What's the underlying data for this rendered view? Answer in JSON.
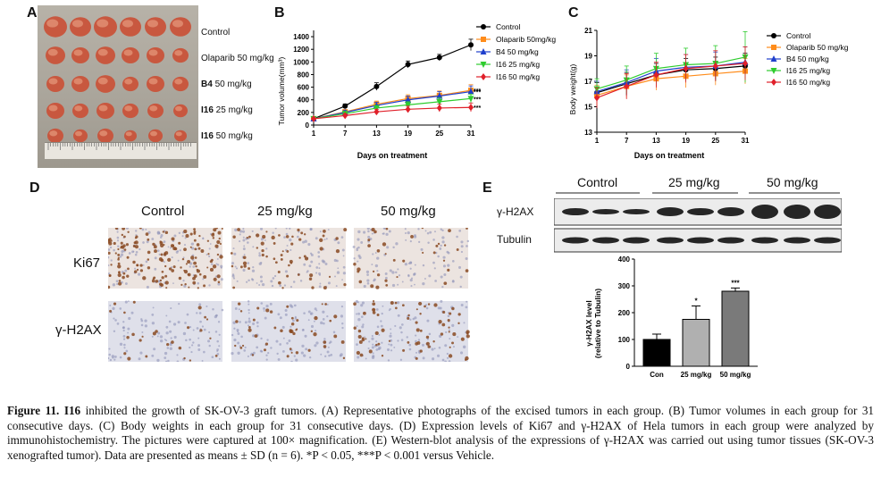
{
  "panels": {
    "A": {
      "letter": "A",
      "row_labels": [
        {
          "text": "Control",
          "bold": false
        },
        {
          "text": "Olaparib 50 mg/kg",
          "bold": false
        },
        {
          "name": "B4",
          "dose": " 50 mg/kg"
        },
        {
          "name": "I16",
          "dose": " 25 mg/kg"
        },
        {
          "name": "I16",
          "dose": " 50 mg/kg"
        }
      ]
    },
    "B": {
      "letter": "B",
      "chart_data": {
        "type": "line",
        "xlabel": "Days on treatment",
        "ylabel": "Tumor volume(mm³)",
        "x": [
          1,
          7,
          13,
          19,
          25,
          31
        ],
        "ylim": [
          0,
          1500
        ],
        "yticks": [
          0,
          200,
          400,
          600,
          800,
          1000,
          1200,
          1400
        ],
        "ytick_labels": [
          "0",
          "200",
          "400",
          "600",
          "800",
          "1000",
          "1200",
          "1400"
        ],
        "xticks": [
          1,
          7,
          13,
          19,
          25,
          31
        ],
        "legend": "top-right",
        "series": [
          {
            "name": "Control",
            "color": "#000000",
            "marker": "circle",
            "values": [
              100,
              300,
              610,
              960,
              1070,
              1270
            ],
            "sd": [
              20,
              35,
              60,
              55,
              50,
              90
            ]
          },
          {
            "name": "Olaparib 50mg/kg",
            "color": "#ff8c1a",
            "marker": "square",
            "values": [
              100,
              210,
              330,
              420,
              470,
              550
            ],
            "sd": [
              15,
              30,
              50,
              60,
              70,
              90
            ]
          },
          {
            "name": "B4 50 mg/kg",
            "color": "#1f3fcc",
            "marker": "triangle",
            "values": [
              100,
              200,
              310,
              400,
              460,
              530
            ],
            "sd": [
              15,
              30,
              50,
              60,
              70,
              90
            ]
          },
          {
            "name": "I16 25 mg/kg",
            "color": "#2ecc2e",
            "marker": "triangle-down",
            "values": [
              100,
              180,
              270,
              320,
              370,
              420
            ],
            "sd": [
              15,
              30,
              40,
              50,
              60,
              70
            ]
          },
          {
            "name": "I16 50 mg/kg",
            "color": "#e0202a",
            "marker": "diamond",
            "values": [
              100,
              150,
              210,
              250,
              270,
              280
            ],
            "sd": [
              15,
              25,
              40,
              50,
              60,
              70
            ]
          }
        ],
        "annotations": [
          "***",
          "***",
          "***",
          "***"
        ]
      }
    },
    "C": {
      "letter": "C",
      "chart_data": {
        "type": "line",
        "xlabel": "Days on treatment",
        "ylabel": "Body weight(g)",
        "x": [
          1,
          7,
          13,
          19,
          25,
          31
        ],
        "ylim": [
          13,
          21
        ],
        "yticks": [
          13,
          15,
          17,
          19,
          21
        ],
        "ytick_labels": [
          "13",
          "15",
          "17",
          "19",
          "21"
        ],
        "xticks": [
          1,
          7,
          13,
          19,
          25,
          31
        ],
        "legend": "right",
        "series": [
          {
            "name": "Control",
            "color": "#000000",
            "marker": "circle",
            "values": [
              16.1,
              16.8,
              17.5,
              17.9,
              18.0,
              18.2
            ],
            "sd": [
              0.8,
              0.9,
              0.9,
              0.9,
              0.9,
              1.0
            ]
          },
          {
            "name": "Olaparib 50 mg/kg",
            "color": "#ff8c1a",
            "marker": "square",
            "values": [
              15.9,
              16.6,
              17.2,
              17.4,
              17.6,
              17.8
            ],
            "sd": [
              0.8,
              0.9,
              0.9,
              0.9,
              0.9,
              1.0
            ]
          },
          {
            "name": "B4 50 mg/kg",
            "color": "#1f3fcc",
            "marker": "triangle",
            "values": [
              16.2,
              16.9,
              17.8,
              18.1,
              18.2,
              18.5
            ],
            "sd": [
              0.8,
              1.0,
              1.0,
              1.0,
              1.1,
              1.2
            ]
          },
          {
            "name": "I16 25 mg/kg",
            "color": "#2ecc2e",
            "marker": "triangle-down",
            "values": [
              16.4,
              17.1,
              18.0,
              18.3,
              18.4,
              18.9
            ],
            "sd": [
              0.8,
              1.1,
              1.2,
              1.3,
              1.4,
              2.0
            ]
          },
          {
            "name": "I16 50 mg/kg",
            "color": "#e0202a",
            "marker": "diamond",
            "values": [
              15.7,
              16.6,
              17.5,
              18.0,
              18.2,
              18.4
            ],
            "sd": [
              0.8,
              1.0,
              1.0,
              1.1,
              1.2,
              1.3
            ]
          }
        ]
      }
    },
    "D": {
      "letter": "D",
      "columns": [
        "Control",
        "25 mg/kg",
        "50 mg/kg"
      ],
      "rows": [
        "Ki67",
        "γ-H2AX"
      ]
    },
    "E": {
      "letter": "E",
      "blot_groups": [
        "Control",
        "25 mg/kg",
        "50 mg/kg"
      ],
      "blot_rows": [
        "γ-H2AX",
        "Tubulin"
      ],
      "chart_data": {
        "type": "bar",
        "categories": [
          "Con",
          "25 mg/kg",
          "50 mg/kg"
        ],
        "values": [
          100,
          175,
          280
        ],
        "sd": [
          20,
          50,
          12
        ],
        "colors": [
          "#000000",
          "#b0b0b0",
          "#7a7a7a"
        ],
        "ylabel_line1": "γ-H2AX level",
        "ylabel_line2": "(relative to Tubulin)",
        "ylim": [
          0,
          400
        ],
        "yticks": [
          0,
          100,
          200,
          300,
          400
        ],
        "ytick_labels": [
          "0",
          "100",
          "200",
          "300",
          "400"
        ],
        "annotations": [
          "",
          "*",
          "***"
        ]
      }
    }
  },
  "caption": {
    "fig_label": "Figure 11.",
    "compound": "I16",
    "text": " inhibited the growth of SK-OV-3 graft tumors. (A) Representative photographs of the excised tumors in each group. (B) Tumor volumes in each group for 31 consecutive days. (C) Body weights in each group for 31 consecutive days. (D) Expression levels of Ki67 and γ-H2AX of Hela tumors in each group were analyzed by immunohistochemistry. The pictures were captured at 100× magnification. (E) Western-blot analysis of the expressions of γ-H2AX was carried out using tumor tissues (SK-OV-3 xenografted tumor). Data are presented as means ± SD (n = 6). *P < 0.05, ***P < 0.001 versus Vehicle."
  }
}
